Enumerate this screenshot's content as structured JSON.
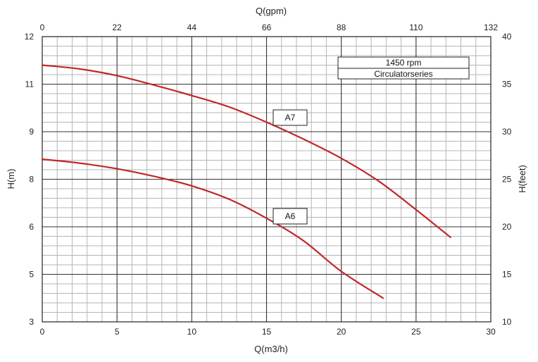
{
  "chart_data": {
    "type": "line",
    "x_bottom": {
      "label": "Q(m3/h)",
      "ticks": [
        "0",
        "5",
        "10",
        "15",
        "20",
        "25",
        "30"
      ],
      "range": [
        0,
        30
      ]
    },
    "x_top": {
      "label": "Q(gpm)",
      "ticks": [
        "0",
        "22",
        "44",
        "66",
        "88",
        "110",
        "132"
      ],
      "range": [
        0,
        132
      ]
    },
    "y_left": {
      "label": "H(m)",
      "ticks": [
        "3",
        "5",
        "6",
        "8",
        "9",
        "11",
        "12"
      ]
    },
    "y_right": {
      "label": "H(feet)",
      "ticks": [
        "10",
        "15",
        "20",
        "25",
        "30",
        "35",
        "40"
      ],
      "range": [
        10,
        40
      ]
    },
    "grid": true,
    "legend_box": {
      "line1": "1450 rpm",
      "line2": "Circulatorseries",
      "position": "top-right"
    },
    "series": [
      {
        "name": "A7",
        "color": "#c0282a",
        "x": [
          0,
          2.5,
          5,
          7.5,
          10,
          12.5,
          15,
          17.5,
          20,
          22.5,
          25,
          27.3
        ],
        "y_feet": [
          37.0,
          36.6,
          35.9,
          34.9,
          33.8,
          32.6,
          31.0,
          29.2,
          27.2,
          24.8,
          21.8,
          18.9
        ]
      },
      {
        "name": "A6",
        "color": "#c0282a",
        "x": [
          0,
          2.5,
          5,
          7.5,
          10,
          12.5,
          15,
          17.5,
          20,
          22.8
        ],
        "y_feet": [
          27.1,
          26.7,
          26.1,
          25.3,
          24.3,
          22.9,
          20.9,
          18.5,
          15.3,
          12.5
        ]
      }
    ]
  }
}
